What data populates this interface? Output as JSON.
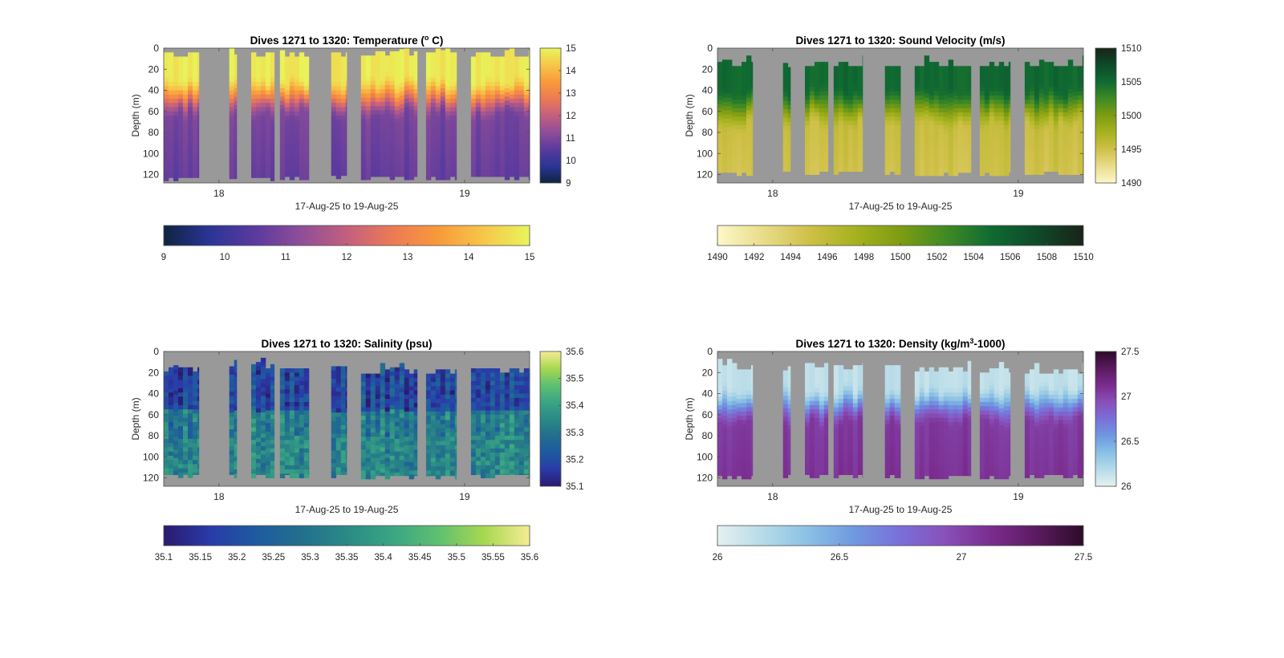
{
  "figure": {
    "panel_count": 4
  },
  "chart_data": [
    {
      "type": "heatmap",
      "id": "temperature",
      "title": "Dives 1271 to 1320: Temperature (",
      "title_super": "o",
      "title_tail": " C)",
      "xlabel": "17-Aug-25 to 19-Aug-25",
      "ylabel": "Depth (m)",
      "xlim": [
        17.775,
        19.265
      ],
      "ylim": [
        0,
        128
      ],
      "y_ticks": [
        0,
        20,
        40,
        60,
        80,
        100,
        120
      ],
      "x_ticks": [
        18,
        19
      ],
      "x_tick_labels": [
        "18",
        "19"
      ],
      "clim": [
        9,
        15
      ],
      "colormap": [
        "#0f2340",
        "#2a3596",
        "#5b3a9e",
        "#8e4e98",
        "#c35f7f",
        "#ec7a55",
        "#f89a3a",
        "#f7c64a",
        "#e8f55a"
      ],
      "vertical_colorbar_ticks": [
        9,
        10,
        11,
        12,
        13,
        14,
        15
      ],
      "horizontal_colorbar_ticks": [
        9,
        10,
        11,
        12,
        13,
        14,
        15
      ],
      "dive_groups": [
        {
          "start": 17.775,
          "end": 17.918,
          "top": 4,
          "bottom": 126
        },
        {
          "start": 18.042,
          "end": 18.072,
          "top": 2,
          "bottom": 124
        },
        {
          "start": 18.131,
          "end": 18.225,
          "top": 4,
          "bottom": 126
        },
        {
          "start": 18.248,
          "end": 18.366,
          "top": 4,
          "bottom": 125
        },
        {
          "start": 18.457,
          "end": 18.52,
          "top": 4,
          "bottom": 124
        },
        {
          "start": 18.578,
          "end": 18.807,
          "top": 3,
          "bottom": 125
        },
        {
          "start": 18.843,
          "end": 18.967,
          "top": 4,
          "bottom": 125
        },
        {
          "start": 19.026,
          "end": 19.265,
          "top": 4,
          "bottom": 125
        }
      ],
      "profile": {
        "surface": 14.8,
        "thermocline_top": 25,
        "thermocline_bottom": 65,
        "deep": 10.9,
        "bottom_value": 10.6
      }
    },
    {
      "type": "heatmap",
      "id": "sound_velocity",
      "title": "Dives 1271 to 1320: Sound Velocity (m/s)",
      "xlabel": "17-Aug-25 to 19-Aug-25",
      "ylabel": "Depth (m)",
      "xlim": [
        17.775,
        19.265
      ],
      "ylim": [
        0,
        128
      ],
      "y_ticks": [
        0,
        20,
        40,
        60,
        80,
        100,
        120
      ],
      "x_ticks": [
        18,
        19
      ],
      "x_tick_labels": [
        "18",
        "19"
      ],
      "clim": [
        1490,
        1510
      ],
      "colormap": [
        "#fcf8c8",
        "#e9dc8a",
        "#cfc048",
        "#a6b21e",
        "#7e9c12",
        "#3f8a24",
        "#0f6a32",
        "#0e4a2a",
        "#1a2318"
      ],
      "vertical_colorbar_ticks": [
        1490,
        1495,
        1500,
        1505,
        1510
      ],
      "horizontal_colorbar_ticks": [
        1490,
        1492,
        1494,
        1496,
        1498,
        1500,
        1502,
        1504,
        1506,
        1508,
        1510
      ],
      "dive_groups": [
        {
          "start": 17.775,
          "end": 17.918,
          "top": 13,
          "bottom": 121
        },
        {
          "start": 18.042,
          "end": 18.072,
          "top": 14,
          "bottom": 120
        },
        {
          "start": 18.131,
          "end": 18.225,
          "top": 13,
          "bottom": 120
        },
        {
          "start": 18.248,
          "end": 18.366,
          "top": 13,
          "bottom": 120
        },
        {
          "start": 18.457,
          "end": 18.52,
          "top": 13,
          "bottom": 120
        },
        {
          "start": 18.578,
          "end": 18.807,
          "top": 13,
          "bottom": 121
        },
        {
          "start": 18.843,
          "end": 18.967,
          "top": 13,
          "bottom": 121
        },
        {
          "start": 19.026,
          "end": 19.265,
          "top": 13,
          "bottom": 120
        }
      ],
      "profile": {
        "surface": 1505.2,
        "thermocline_top": 35,
        "thermocline_bottom": 75,
        "deep": 1495.5,
        "bottom_value": 1494.8
      }
    },
    {
      "type": "heatmap",
      "id": "salinity",
      "title": "Dives 1271 to 1320: Salinity (psu)",
      "xlabel": "17-Aug-25 to 19-Aug-25",
      "ylabel": "Depth (m)",
      "xlim": [
        17.775,
        19.265
      ],
      "ylim": [
        0,
        128
      ],
      "y_ticks": [
        0,
        20,
        40,
        60,
        80,
        100,
        120
      ],
      "x_ticks": [
        18,
        19
      ],
      "x_tick_labels": [
        "18",
        "19"
      ],
      "clim": [
        35.1,
        35.6
      ],
      "colormap": [
        "#2b1a6e",
        "#2a3aa8",
        "#1e5aa0",
        "#226f8e",
        "#2a8a86",
        "#3aa583",
        "#5ec070",
        "#a7d850",
        "#f5ec95"
      ],
      "vertical_colorbar_ticks": [
        35.1,
        35.2,
        35.3,
        35.4,
        35.5,
        35.6
      ],
      "horizontal_colorbar_ticks": [
        35.1,
        35.15,
        35.2,
        35.25,
        35.3,
        35.35,
        35.4,
        35.45,
        35.5,
        35.55,
        35.6
      ],
      "vertical_colorbar_tick_labels": [
        "35.1",
        "35.2",
        "35.3",
        "35.4",
        "35.5",
        "35.6"
      ],
      "horizontal_colorbar_tick_labels": [
        "35.1",
        "35.15",
        "35.2",
        "35.25",
        "35.3",
        "35.35",
        "35.4",
        "35.45",
        "35.5",
        "35.55",
        "35.6"
      ],
      "dive_groups": [
        {
          "start": 17.775,
          "end": 17.918,
          "top": 15,
          "bottom": 120
        },
        {
          "start": 18.042,
          "end": 18.072,
          "top": 14,
          "bottom": 120
        },
        {
          "start": 18.131,
          "end": 18.225,
          "top": 12,
          "bottom": 120
        },
        {
          "start": 18.248,
          "end": 18.366,
          "top": 12,
          "bottom": 120
        },
        {
          "start": 18.457,
          "end": 18.52,
          "top": 14,
          "bottom": 120
        },
        {
          "start": 18.578,
          "end": 18.807,
          "top": 17,
          "bottom": 121
        },
        {
          "start": 18.843,
          "end": 18.967,
          "top": 17,
          "bottom": 121
        },
        {
          "start": 19.026,
          "end": 19.265,
          "top": 16,
          "bottom": 120
        }
      ],
      "profile": {
        "surface": 35.2,
        "thermocline_top": 30,
        "thermocline_bottom": 70,
        "deep": 35.3,
        "bottom_value": 35.32
      }
    },
    {
      "type": "heatmap",
      "id": "density",
      "title": "Dives 1271 to 1320: Density (kg/m",
      "title_super": "3",
      "title_tail": "-1000)",
      "xlabel": "17-Aug-25 to 19-Aug-25",
      "ylabel": "Depth (m)",
      "xlim": [
        17.775,
        19.265
      ],
      "ylim": [
        0,
        128
      ],
      "y_ticks": [
        0,
        20,
        40,
        60,
        80,
        100,
        120
      ],
      "x_ticks": [
        18,
        19
      ],
      "x_tick_labels": [
        "18",
        "19"
      ],
      "clim": [
        26,
        27.5
      ],
      "colormap": [
        "#e6f0f0",
        "#b6dbe8",
        "#8ac0e4",
        "#6f98e0",
        "#7a6fd8",
        "#8850b8",
        "#7a2c8e",
        "#5a1a5e",
        "#2c0c28"
      ],
      "vertical_colorbar_ticks": [
        26,
        26.5,
        27,
        27.5
      ],
      "horizontal_colorbar_ticks": [
        26,
        26.5,
        27,
        27.5
      ],
      "vertical_colorbar_tick_labels": [
        "26",
        "26.5",
        "27",
        "27.5"
      ],
      "horizontal_colorbar_tick_labels": [
        "26",
        "26.5",
        "27",
        "27.5"
      ],
      "dive_groups": [
        {
          "start": 17.775,
          "end": 17.918,
          "top": 13,
          "bottom": 121
        },
        {
          "start": 18.042,
          "end": 18.072,
          "top": 14,
          "bottom": 120
        },
        {
          "start": 18.131,
          "end": 18.225,
          "top": 11,
          "bottom": 120
        },
        {
          "start": 18.248,
          "end": 18.366,
          "top": 13,
          "bottom": 120
        },
        {
          "start": 18.457,
          "end": 18.52,
          "top": 13,
          "bottom": 120
        },
        {
          "start": 18.578,
          "end": 18.807,
          "top": 15,
          "bottom": 121
        },
        {
          "start": 18.843,
          "end": 18.967,
          "top": 16,
          "bottom": 121
        },
        {
          "start": 19.026,
          "end": 19.265,
          "top": 17,
          "bottom": 120
        }
      ],
      "profile": {
        "surface": 26.15,
        "thermocline_top": 30,
        "thermocline_bottom": 70,
        "deep": 27.05,
        "bottom_value": 27.1
      }
    }
  ]
}
